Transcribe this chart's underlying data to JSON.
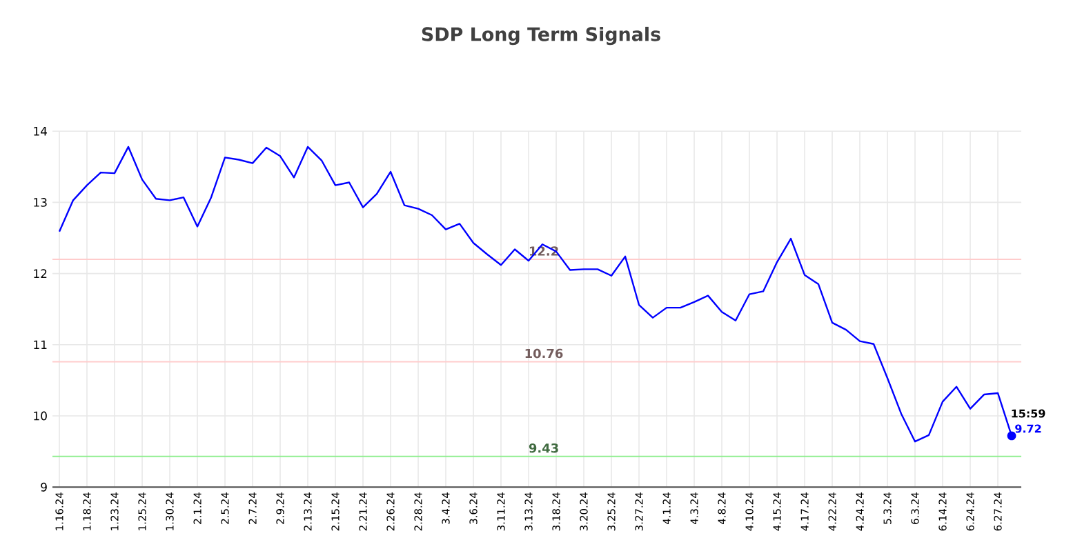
{
  "chart_data": {
    "type": "line",
    "title": "SDP Long Term Signals",
    "categories": [
      "1.16.24",
      null,
      "1.18.24",
      null,
      "1.23.24",
      null,
      "1.25.24",
      null,
      "1.30.24",
      null,
      "2.1.24",
      null,
      "2.5.24",
      null,
      "2.7.24",
      null,
      "2.9.24",
      null,
      "2.13.24",
      null,
      "2.15.24",
      null,
      "2.21.24",
      null,
      "2.26.24",
      null,
      "2.28.24",
      null,
      "3.4.24",
      null,
      "3.6.24",
      null,
      "3.11.24",
      null,
      "3.13.24",
      null,
      "3.18.24",
      null,
      "3.20.24",
      null,
      "3.25.24",
      null,
      "3.27.24",
      null,
      "4.1.24",
      null,
      "4.3.24",
      null,
      "4.8.24",
      null,
      "4.10.24",
      null,
      "4.15.24",
      null,
      "4.17.24",
      null,
      "4.22.24",
      null,
      "4.24.24",
      null,
      "5.3.24",
      null,
      "6.3.24",
      null,
      "6.14.24",
      null,
      "6.24.24",
      null,
      "6.27.24",
      null
    ],
    "series": [
      {
        "color": "#0000ff",
        "values": [
          12.59,
          13.03,
          13.24,
          13.42,
          13.41,
          13.78,
          13.32,
          13.05,
          13.03,
          13.07,
          12.66,
          13.07,
          13.63,
          13.6,
          13.55,
          13.77,
          13.65,
          13.35,
          13.78,
          13.59,
          13.24,
          13.28,
          12.93,
          13.12,
          13.43,
          12.96,
          12.91,
          12.82,
          12.62,
          12.7,
          12.43,
          12.27,
          12.12,
          12.34,
          12.18,
          12.41,
          12.31,
          12.05,
          12.06,
          12.06,
          11.97,
          12.24,
          11.56,
          11.38,
          11.52,
          11.52,
          11.6,
          11.69,
          11.46,
          11.34,
          11.71,
          11.75,
          12.16,
          12.49,
          11.98,
          11.85,
          11.31,
          11.21,
          11.05,
          11.01,
          10.53,
          10.03,
          9.64,
          9.73,
          10.2,
          10.41,
          10.1,
          10.3,
          10.32,
          9.72
        ]
      }
    ],
    "ylim": [
      9,
      14
    ],
    "yticks": [
      9,
      10,
      11,
      12,
      13,
      14
    ],
    "grid": true,
    "marker": "none",
    "line_style": "solid",
    "ref_lines": [
      {
        "axis": "y",
        "value": 12.2,
        "label": "12.2",
        "color": "#ffcccc"
      },
      {
        "axis": "y",
        "value": 10.76,
        "label": "10.76",
        "color": "#ffcccc"
      },
      {
        "axis": "y",
        "value": 9.43,
        "label": "9.43",
        "color": "#90ee90"
      }
    ],
    "annotations": [
      "15:59",
      "9.72"
    ]
  }
}
